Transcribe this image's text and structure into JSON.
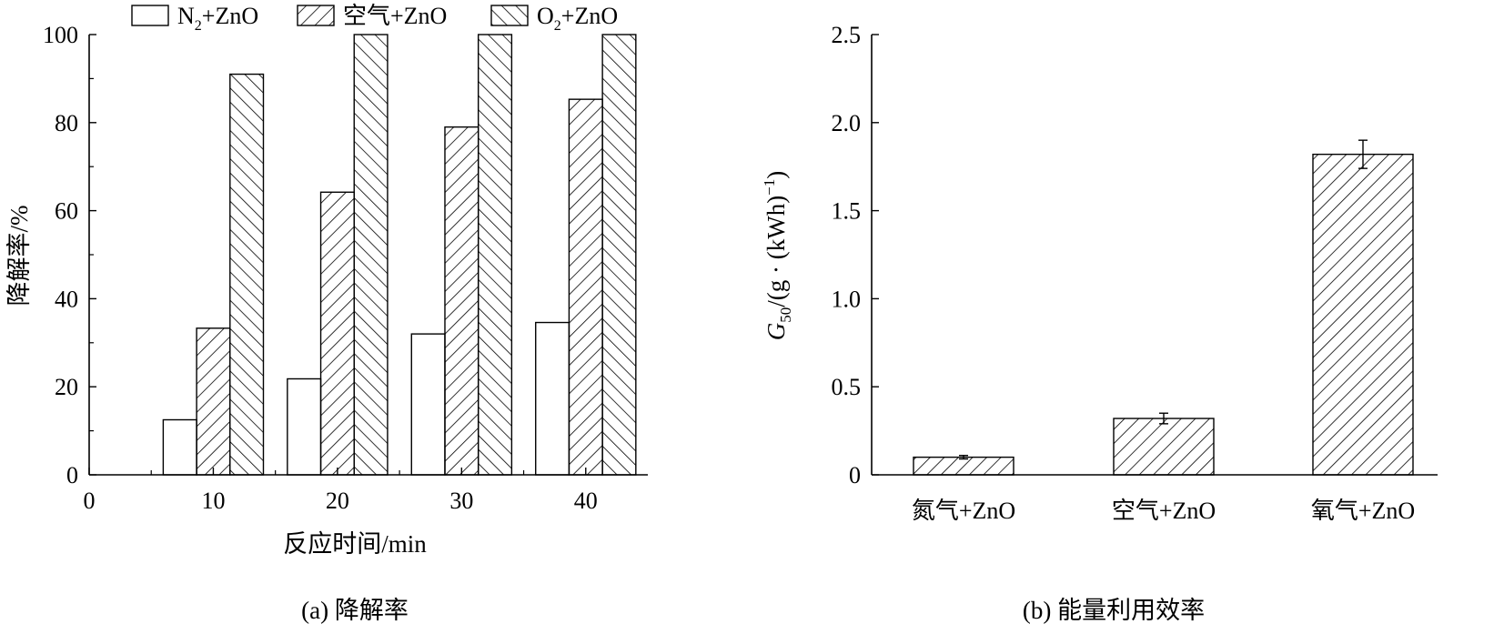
{
  "chart_data": [
    {
      "type": "bar",
      "caption": "(a) 降解率",
      "xlabel": "反应时间/min",
      "ylabel": "降解率/%",
      "x": [
        10,
        20,
        30,
        40
      ],
      "xlim": [
        0,
        45
      ],
      "xticks": [
        0,
        10,
        20,
        30,
        40
      ],
      "ylim": [
        0,
        100
      ],
      "yticks": [
        0,
        20,
        40,
        60,
        80,
        100
      ],
      "legend_position": "top",
      "series": [
        {
          "name_main": "N",
          "name_sub": "2",
          "name_rest": "+ZnO",
          "pattern": "empty",
          "values": [
            12.5,
            21.8,
            32,
            34.6
          ]
        },
        {
          "name_main": "空气+ZnO",
          "name_sub": "",
          "name_rest": "",
          "pattern": "hatch-forward",
          "values": [
            33.3,
            64.2,
            79,
            85.3
          ]
        },
        {
          "name_main": "O",
          "name_sub": "2",
          "name_rest": "+ZnO",
          "pattern": "hatch-back",
          "values": [
            91,
            100,
            100,
            100
          ]
        }
      ]
    },
    {
      "type": "bar",
      "caption": "(b) 能量利用效率",
      "ylabel_main": "G",
      "ylabel_sub": "50",
      "ylabel_mid": "/(g · (kWh)",
      "ylabel_sup": "−1",
      "ylabel_end": ")",
      "categories": [
        "氮气+ZnO",
        "空气+ZnO",
        "氧气+ZnO"
      ],
      "values": [
        0.1,
        0.32,
        1.82
      ],
      "errors": [
        0.01,
        0.03,
        0.08
      ],
      "ylim": [
        0,
        2.5
      ],
      "yticks": [
        "0",
        "0.5",
        "1.0",
        "1.5",
        "2.0",
        "2.5"
      ],
      "pattern": "hatch-forward"
    }
  ]
}
